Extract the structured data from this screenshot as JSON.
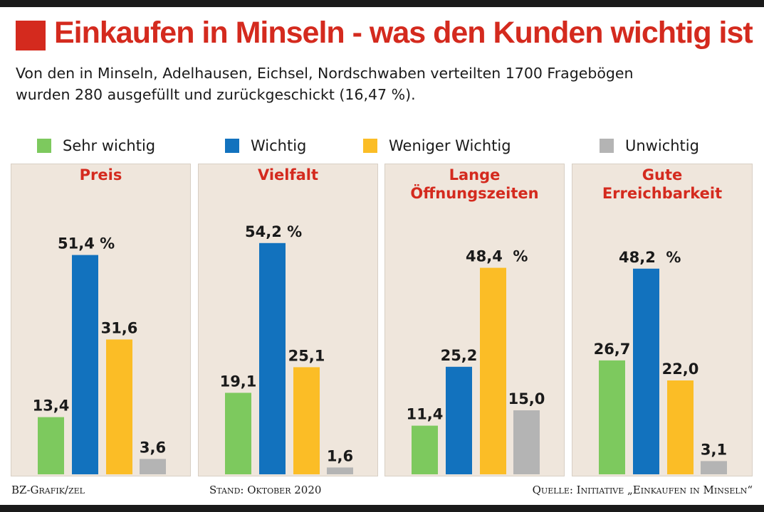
{
  "header": {
    "title": "Einkaufen in Minseln - was den Kunden wichtig ist",
    "subtitle_line1": "Von den in Minseln, Adelhausen, Eichsel, Nordschwaben verteilten 1700 Fragebögen",
    "subtitle_line2": "wurden 280 ausgefüllt und zurückgeschickt (16,47 %)."
  },
  "colors": {
    "accent": "#d42a1e",
    "panel_bg": "#efe6dc",
    "panel_border": "#d8cfc4",
    "sehr_wichtig": "#7dc95e",
    "wichtig": "#1272be",
    "weniger_wichtig": "#fbbd26",
    "unwichtig": "#b4b4b4"
  },
  "legend": [
    {
      "name": "Sehr wichtig",
      "color": "#7dc95e"
    },
    {
      "name": "Wichtig",
      "color": "#1272be"
    },
    {
      "name": "Weniger Wichtig",
      "color": "#fbbd26"
    },
    {
      "name": "Unwichtig",
      "color": "#b4b4b4"
    }
  ],
  "chart_data": [
    {
      "type": "bar",
      "title_lines": [
        "Preis"
      ],
      "categories": [
        "Sehr wichtig",
        "Wichtig",
        "Weniger Wichtig",
        "Unwichtig"
      ],
      "values": [
        13.4,
        51.4,
        31.6,
        3.6
      ],
      "labels": [
        "13,4",
        "51,4 %",
        "31,6",
        "3,6"
      ],
      "ylim": [
        0,
        60
      ]
    },
    {
      "type": "bar",
      "title_lines": [
        "Vielfalt"
      ],
      "categories": [
        "Sehr wichtig",
        "Wichtig",
        "Weniger Wichtig",
        "Unwichtig"
      ],
      "values": [
        19.1,
        54.2,
        25.1,
        1.6
      ],
      "labels": [
        "19,1",
        "54,2 %",
        "25,1",
        "1,6"
      ],
      "ylim": [
        0,
        60
      ]
    },
    {
      "type": "bar",
      "title_lines": [
        "Lange",
        "Öffnungszeiten"
      ],
      "categories": [
        "Sehr wichtig",
        "Wichtig",
        "Weniger Wichtig",
        "Unwichtig"
      ],
      "values": [
        11.4,
        25.2,
        48.4,
        15.0
      ],
      "labels": [
        "11,4",
        "25,2",
        "48,4  %",
        "15,0"
      ],
      "ylim": [
        0,
        60
      ]
    },
    {
      "type": "bar",
      "title_lines": [
        "Gute",
        "Erreichbarkeit"
      ],
      "categories": [
        "Sehr wichtig",
        "Wichtig",
        "Weniger Wichtig",
        "Unwichtig"
      ],
      "values": [
        26.7,
        48.2,
        22.0,
        3.1
      ],
      "labels": [
        "26,7",
        "48,2  %",
        "22,0",
        "3,1"
      ],
      "ylim": [
        0,
        60
      ]
    }
  ],
  "footer": {
    "left": "BZ-Grafik/zel",
    "center": "Stand: Oktober 2020",
    "right": "Quelle: Initiative „Einkaufen in Minseln“"
  }
}
